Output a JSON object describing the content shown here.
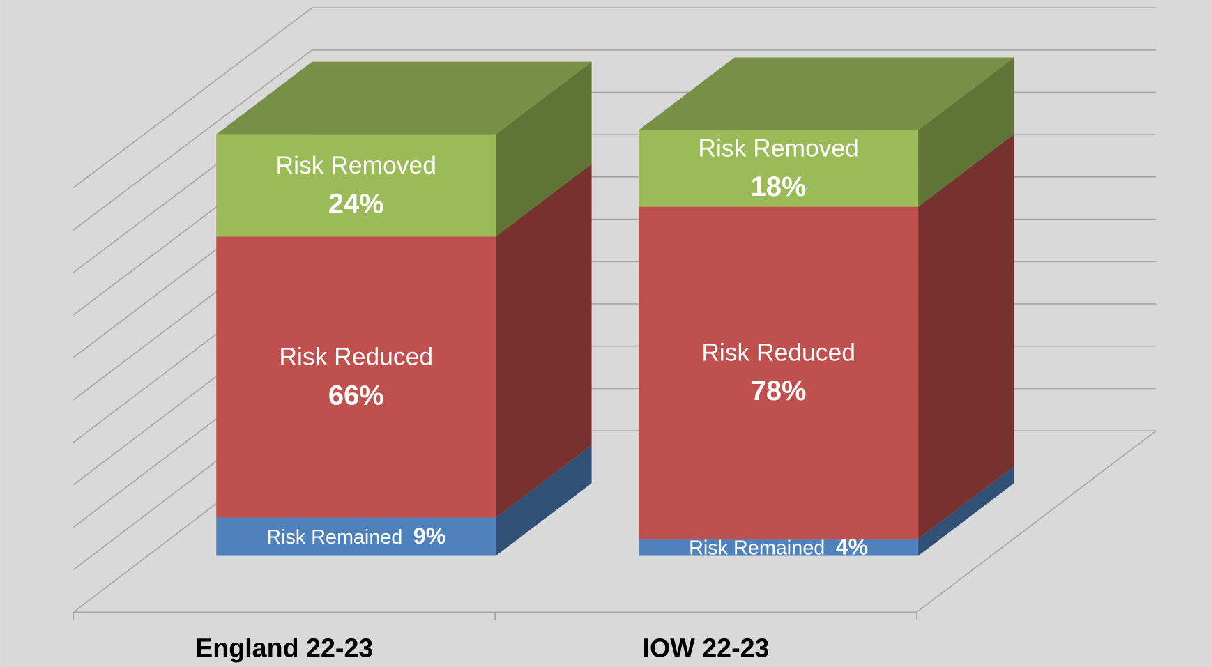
{
  "chart_data": {
    "type": "bar3d_stacked",
    "categories": [
      "England 22-23",
      "IOW 22-23"
    ],
    "series": [
      {
        "name": "Risk Remained",
        "color": "#4f81bd",
        "values": [
          9,
          4
        ],
        "value_labels": [
          "9%",
          "4%"
        ]
      },
      {
        "name": "Risk Reduced",
        "color": "#c0504d",
        "values": [
          66,
          78
        ],
        "value_labels": [
          "66%",
          "78%"
        ]
      },
      {
        "name": "Risk Removed",
        "color": "#9bbb59",
        "values": [
          24,
          18
        ],
        "value_labels": [
          "24%",
          "18%"
        ]
      }
    ],
    "ylim": [
      0,
      100
    ],
    "yticks": [
      0,
      10,
      20,
      30,
      40,
      50,
      60,
      70,
      80,
      90,
      100
    ],
    "grid": true
  }
}
